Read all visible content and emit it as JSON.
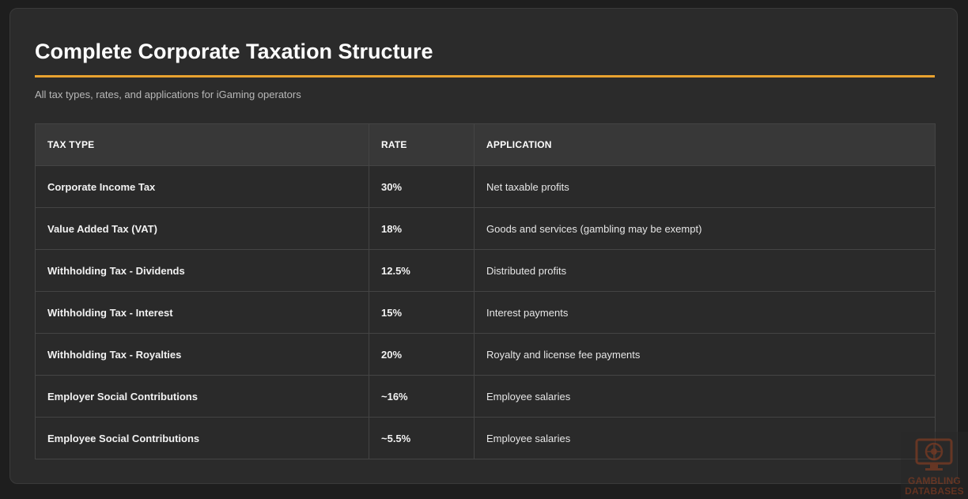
{
  "title": "Complete Corporate Taxation Structure",
  "subtitle": "All tax types, rates, and applications for iGaming operators",
  "accent_color": "#e9a230",
  "table": {
    "headers": [
      "TAX TYPE",
      "RATE",
      "APPLICATION"
    ],
    "rows": [
      {
        "type": "Corporate Income Tax",
        "rate": "30%",
        "application": "Net taxable profits"
      },
      {
        "type": "Value Added Tax (VAT)",
        "rate": "18%",
        "application": "Goods and services (gambling may be exempt)"
      },
      {
        "type": "Withholding Tax - Dividends",
        "rate": "12.5%",
        "application": "Distributed profits"
      },
      {
        "type": "Withholding Tax - Interest",
        "rate": "15%",
        "application": "Interest payments"
      },
      {
        "type": "Withholding Tax - Royalties",
        "rate": "20%",
        "application": "Royalty and license fee payments"
      },
      {
        "type": "Employer Social Contributions",
        "rate": "~16%",
        "application": "Employee salaries"
      },
      {
        "type": "Employee Social Contributions",
        "rate": "~5.5%",
        "application": "Employee salaries"
      }
    ]
  },
  "watermark": {
    "line1": "GAMBLING",
    "line2": "DATABASES",
    "icon": "monitor-roulette-icon"
  }
}
